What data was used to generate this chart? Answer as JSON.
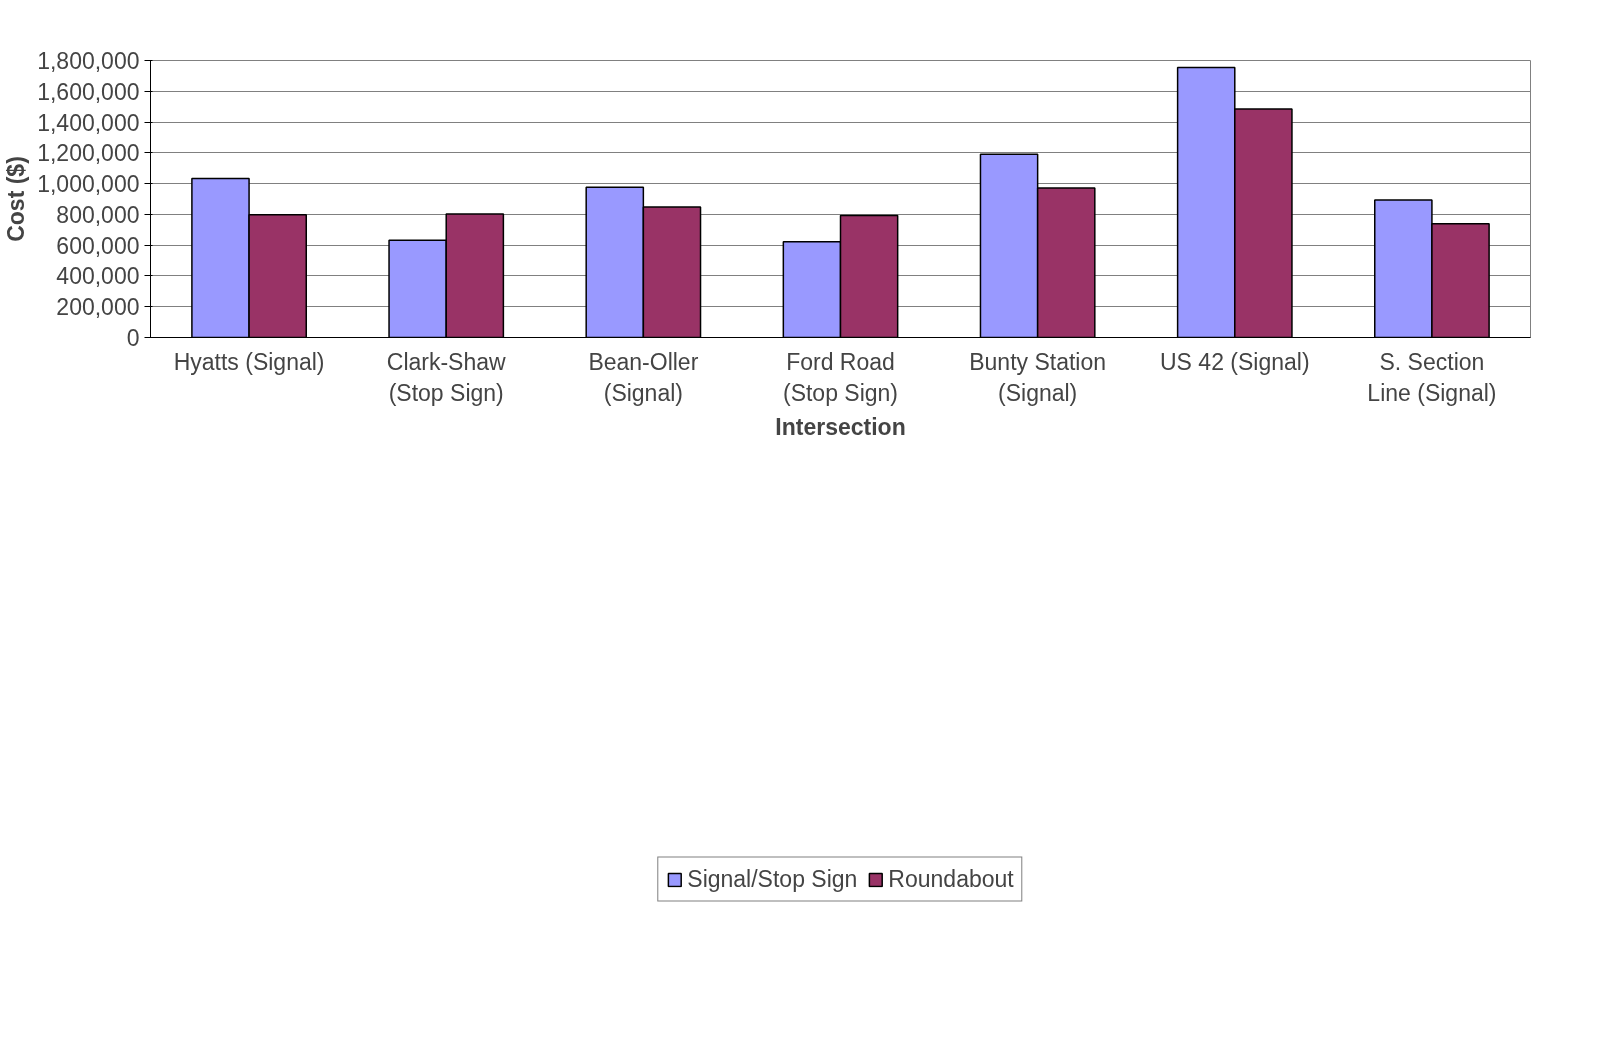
{
  "chart_data": {
    "type": "bar",
    "xlabel": "Intersection",
    "ylabel": "Cost ($)",
    "categories": [
      "Hyatts (Signal)",
      "Clark-Shaw\n(Stop Sign)",
      "Bean-Oller\n(Signal)",
      "Ford Road\n(Stop Sign)",
      "Bunty Station\n(Signal)",
      "US 42 (Signal)",
      "S. Section\nLine (Signal)"
    ],
    "series": [
      {
        "name": "Signal/Stop Sign",
        "color": "#9999ff",
        "values": [
          1033000,
          632000,
          977000,
          622000,
          1191000,
          1754000,
          894000
        ]
      },
      {
        "name": "Roundabout",
        "color": "#993366",
        "values": [
          797000,
          802000,
          848000,
          792000,
          972000,
          1485000,
          739000
        ]
      }
    ],
    "ylim": [
      0,
      1800000
    ],
    "yticks": [
      {
        "value": 0,
        "label": "0"
      },
      {
        "value": 200000,
        "label": "200,000"
      },
      {
        "value": 400000,
        "label": "400,000"
      },
      {
        "value": 600000,
        "label": "600,000"
      },
      {
        "value": 800000,
        "label": "800,000"
      },
      {
        "value": 1000000,
        "label": "1,000,000"
      },
      {
        "value": 1200000,
        "label": "1,200,000"
      },
      {
        "value": 1400000,
        "label": "1,400,000"
      },
      {
        "value": 1600000,
        "label": "1,600,000"
      },
      {
        "value": 1800000,
        "label": "1,800,000"
      }
    ],
    "grid": "y",
    "legend": "bottom"
  }
}
